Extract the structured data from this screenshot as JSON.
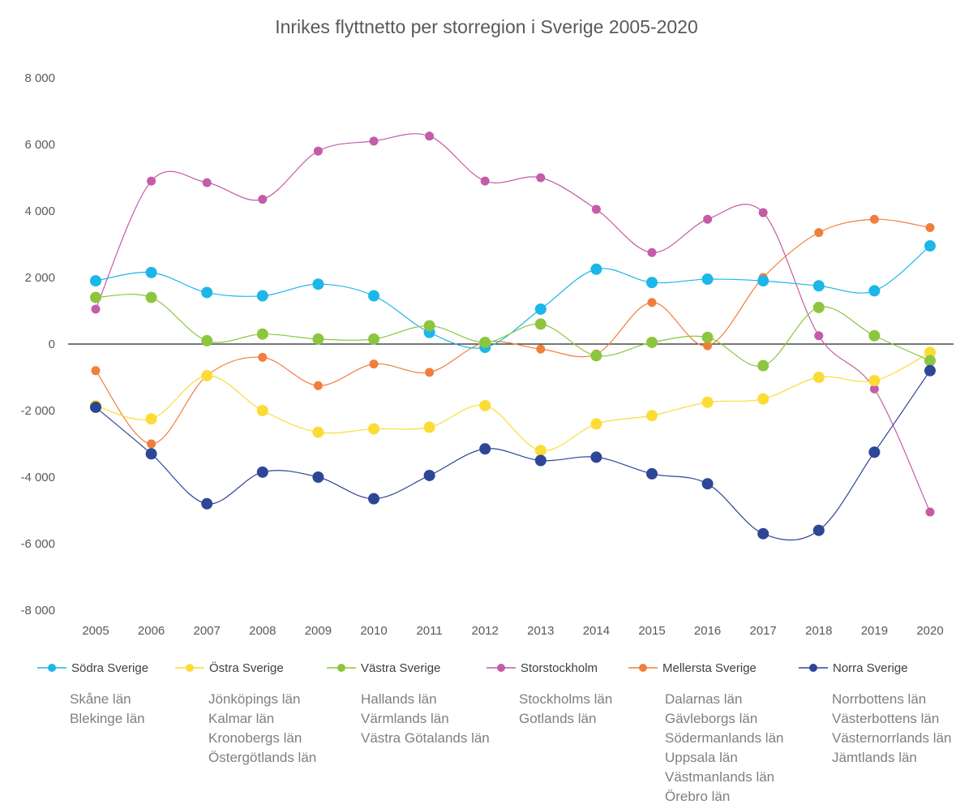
{
  "chart_data": {
    "type": "line",
    "title": "Inrikes flyttnetto per storregion i Sverige 2005-2020",
    "xlabel": "",
    "ylabel": "",
    "ylim": [
      -8000,
      8000
    ],
    "y_ticks": [
      8000,
      6000,
      4000,
      2000,
      0,
      -2000,
      -4000,
      -6000,
      -8000
    ],
    "y_tick_labels": [
      "8 000",
      "6 000",
      "4 000",
      "2 000",
      "0",
      "-2 000",
      "-4 000",
      "-6 000",
      "-8 000"
    ],
    "grid": false,
    "smooth": true,
    "legend_position": "bottom",
    "x": [
      "2005",
      "2006",
      "2007",
      "2008",
      "2009",
      "2010",
      "2011",
      "2012",
      "2013",
      "2014",
      "2015",
      "2016",
      "2017",
      "2018",
      "2019",
      "2020"
    ],
    "series": [
      {
        "name": "Södra Sverige",
        "color": "#1cb6e8",
        "marker_size": "large",
        "values": [
          1900,
          2150,
          1550,
          1450,
          1800,
          1450,
          350,
          -100,
          1050,
          2250,
          1850,
          1950,
          1900,
          1750,
          1600,
          2950
        ],
        "regions": [
          "Skåne län",
          "Blekinge län"
        ]
      },
      {
        "name": "Östra Sverige",
        "color": "#fbdc37",
        "marker_size": "large",
        "values": [
          -1850,
          -2250,
          -950,
          -2000,
          -2650,
          -2550,
          -2500,
          -1850,
          -3200,
          -2400,
          -2150,
          -1750,
          -1650,
          -1000,
          -1100,
          -250
        ],
        "regions": [
          "Jönköpings län",
          "Kalmar län",
          "Kronobergs län",
          "Östergötlands län"
        ]
      },
      {
        "name": "Västra Sverige",
        "color": "#8cc63f",
        "marker_size": "large",
        "values": [
          1400,
          1400,
          100,
          300,
          150,
          150,
          550,
          50,
          600,
          -350,
          50,
          200,
          -650,
          1100,
          250,
          -500
        ],
        "regions": [
          "Hallands län",
          "Värmlands län",
          "Västra Götalands län"
        ]
      },
      {
        "name": "Storstockholm",
        "color": "#c45ca8",
        "marker_size": "small",
        "values": [
          1050,
          4900,
          4850,
          4350,
          5800,
          6100,
          6250,
          4900,
          5000,
          4050,
          2750,
          3750,
          3950,
          250,
          -1350,
          -5050
        ],
        "regions": [
          "Stockholms län",
          "Gotlands län"
        ]
      },
      {
        "name": "Mellersta Sverige",
        "color": "#f07f3c",
        "marker_size": "small",
        "values": [
          -800,
          -3000,
          -950,
          -400,
          -1250,
          -600,
          -850,
          50,
          -150,
          -300,
          1250,
          -50,
          2000,
          3350,
          3750,
          3500
        ],
        "regions": [
          "Dalarnas län",
          "Gävleborgs län",
          "Södermanlands län",
          "Uppsala län",
          "Västmanlands län",
          "Örebro län"
        ]
      },
      {
        "name": "Norra Sverige",
        "color": "#2e4696",
        "marker_size": "large",
        "values": [
          -1900,
          -3300,
          -4800,
          -3850,
          -4000,
          -4650,
          -3950,
          -3150,
          -3500,
          -3400,
          -3900,
          -4200,
          -5700,
          -5600,
          -3250,
          -800
        ],
        "regions": [
          "Norrbottens län",
          "Västerbottens län",
          "Västernorrlands län",
          "Jämtlands län"
        ]
      }
    ]
  }
}
